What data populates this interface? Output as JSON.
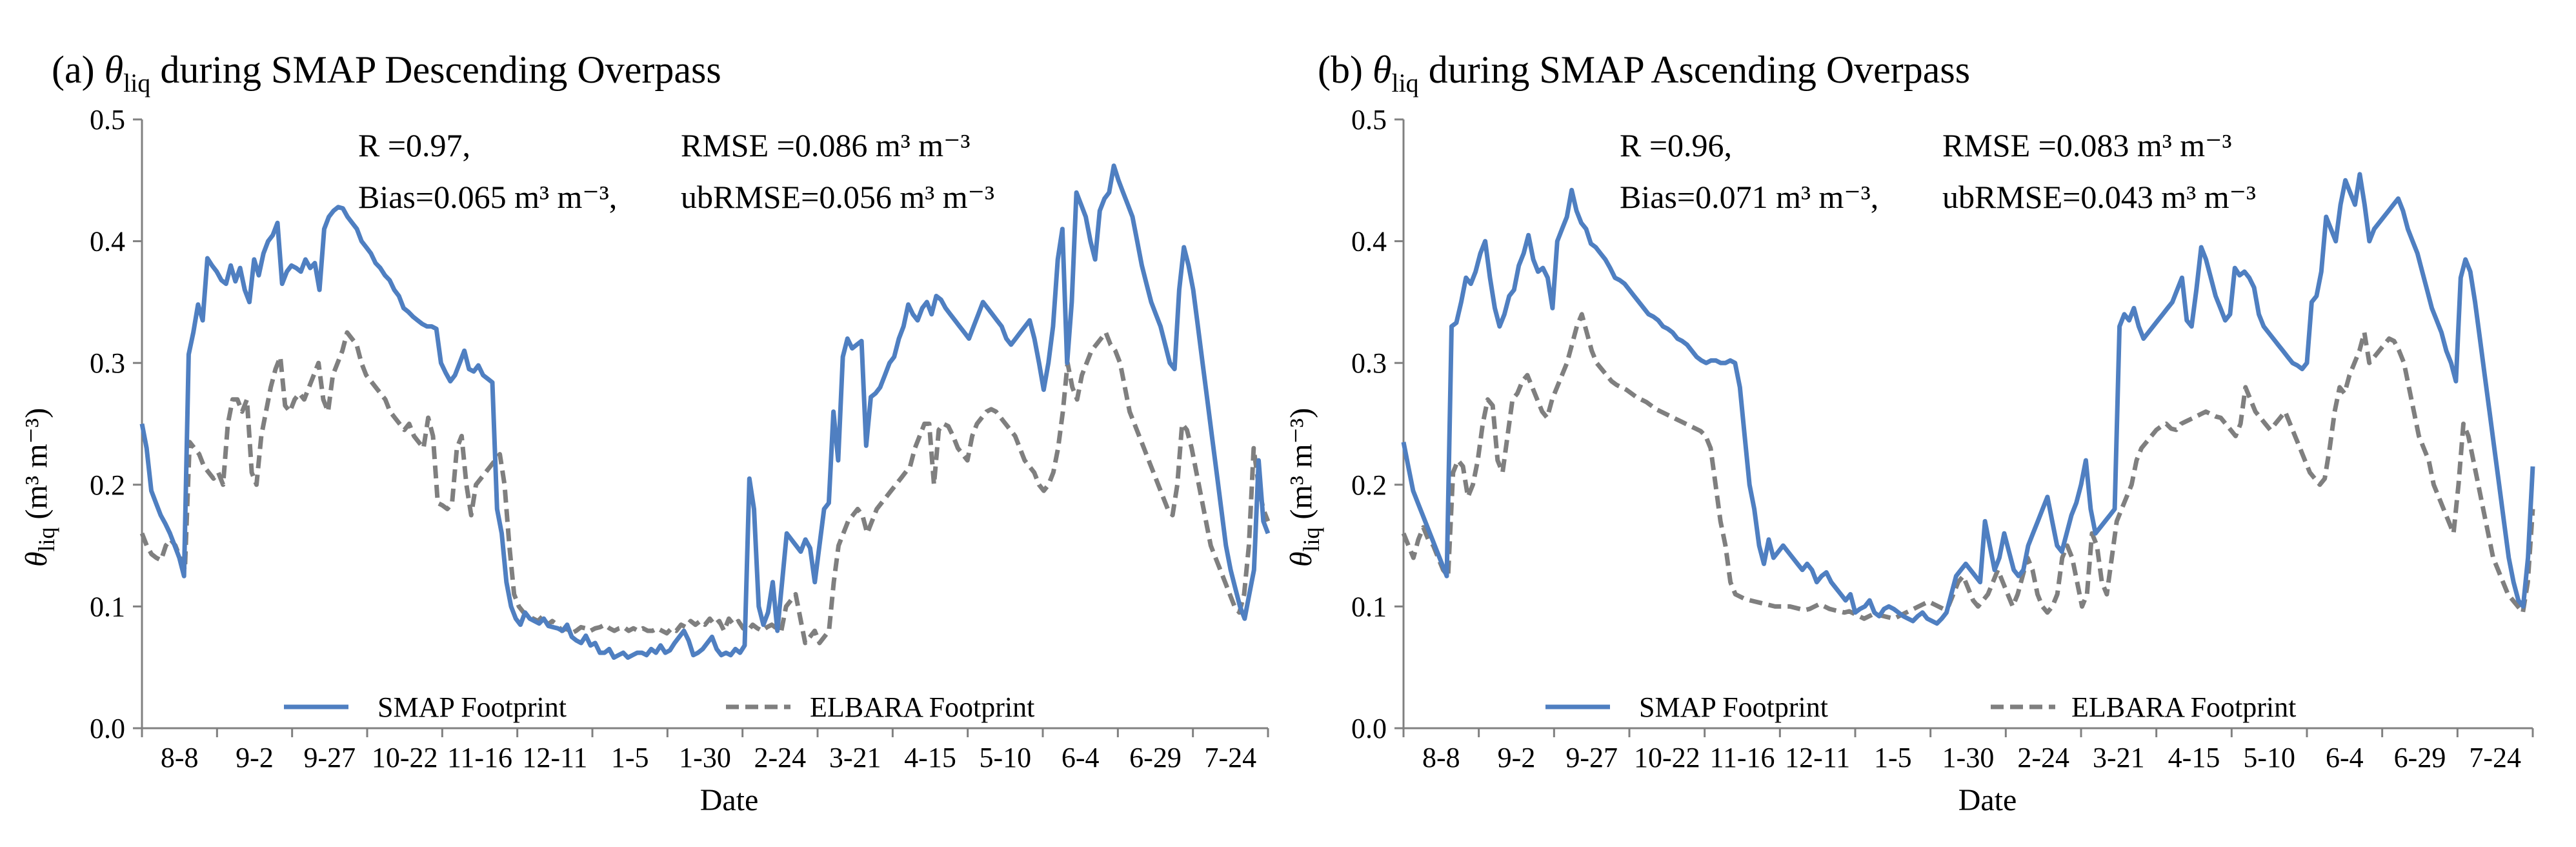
{
  "colors": {
    "smap": "#4F7FC1",
    "elbara": "#7F7F7F",
    "axis": "#808080"
  },
  "chart_data": [
    {
      "type": "line",
      "panel_label": "(a)",
      "title_symbol": "θ",
      "title_subscript": "liq",
      "title_text": " during SMAP Descending Overpass",
      "xlabel": "Date",
      "ylabel_symbol": "θ",
      "ylabel_subscript": "liq",
      "ylabel_unit": "(m³ m⁻³)",
      "ylim": [
        0,
        0.5
      ],
      "yticks": [
        "0.0",
        "0.1",
        "0.2",
        "0.3",
        "0.4",
        "0.5"
      ],
      "xticks": [
        "8-8",
        "9-2",
        "9-27",
        "10-22",
        "11-16",
        "12-11",
        "1-5",
        "1-30",
        "2-24",
        "3-21",
        "4-15",
        "5-10",
        "6-4",
        "6-29",
        "7-24"
      ],
      "stats": {
        "r": "R   =0.97,",
        "rmse": "RMSE   =0.086 m³ m⁻³",
        "bias": "Bias=0.065 m³ m⁻³,",
        "ubrmse": "ubRMSE=0.056 m³ m⁻³"
      },
      "legend": [
        "SMAP Footprint",
        "ELBARA Footprint"
      ],
      "series": [
        {
          "name": "SMAP Footprint",
          "values": [
            0.25,
            0.23,
            0.195,
            0.185,
            0.175,
            0.168,
            0.16,
            0.15,
            0.14,
            0.125,
            0.307,
            0.325,
            0.348,
            0.335,
            0.386,
            0.38,
            0.375,
            0.368,
            0.365,
            0.38,
            0.367,
            0.378,
            0.36,
            0.35,
            0.385,
            0.372,
            0.39,
            0.4,
            0.405,
            0.415,
            0.365,
            0.375,
            0.38,
            0.378,
            0.375,
            0.385,
            0.378,
            0.382,
            0.36,
            0.41,
            0.42,
            0.425,
            0.428,
            0.427,
            0.42,
            0.415,
            0.41,
            0.4,
            0.395,
            0.39,
            0.382,
            0.378,
            0.372,
            0.368,
            0.36,
            0.355,
            0.345,
            0.342,
            0.338,
            0.335,
            0.332,
            0.33,
            0.33,
            0.328,
            0.3,
            0.292,
            0.285,
            0.29,
            0.3,
            0.31,
            0.295,
            0.293,
            0.298,
            0.29,
            0.287,
            0.284,
            0.18,
            0.16,
            0.12,
            0.1,
            0.09,
            0.085,
            0.095,
            0.09,
            0.088,
            0.086,
            0.09,
            0.084,
            0.083,
            0.082,
            0.08,
            0.085,
            0.075,
            0.072,
            0.07,
            0.076,
            0.068,
            0.07,
            0.062,
            0.062,
            0.065,
            0.058,
            0.06,
            0.062,
            0.058,
            0.06,
            0.062,
            0.062,
            0.06,
            0.065,
            0.062,
            0.068,
            0.062,
            0.064,
            0.07,
            0.075,
            0.08,
            0.072,
            0.06,
            0.062,
            0.065,
            0.07,
            0.075,
            0.065,
            0.06,
            0.062,
            0.06,
            0.065,
            0.062,
            0.068,
            0.205,
            0.18,
            0.1,
            0.085,
            0.095,
            0.12,
            0.08,
            0.12,
            0.16,
            0.155,
            0.15,
            0.145,
            0.155,
            0.148,
            0.12,
            0.15,
            0.18,
            0.185,
            0.26,
            0.22,
            0.305,
            0.32,
            0.312,
            0.315,
            0.318,
            0.232,
            0.272,
            0.275,
            0.28,
            0.29,
            0.3,
            0.305,
            0.32,
            0.33,
            0.348,
            0.34,
            0.335,
            0.345,
            0.35,
            0.34,
            0.355,
            0.352,
            0.345,
            0.34,
            0.335,
            0.33,
            0.325,
            0.32,
            0.33,
            0.34,
            0.35,
            0.345,
            0.34,
            0.335,
            0.33,
            0.32,
            0.315,
            0.32,
            0.325,
            0.33,
            0.335,
            0.32,
            0.3,
            0.278,
            0.3,
            0.33,
            0.385,
            0.41,
            0.3,
            0.35,
            0.44,
            0.43,
            0.42,
            0.4,
            0.385,
            0.425,
            0.435,
            0.44,
            0.462,
            0.45,
            0.44,
            0.43,
            0.42,
            0.4,
            0.38,
            0.365,
            0.35,
            0.34,
            0.33,
            0.315,
            0.3,
            0.295,
            0.36,
            0.395,
            0.38,
            0.36,
            0.33,
            0.3,
            0.27,
            0.24,
            0.21,
            0.18,
            0.15,
            0.13,
            0.115,
            0.1,
            0.09,
            0.11,
            0.13,
            0.22,
            0.17,
            0.16
          ]
        },
        {
          "name": "ELBARA Footprint",
          "values": [
            0.16,
            0.15,
            0.143,
            0.14,
            0.138,
            0.15,
            0.155,
            0.15,
            0.14,
            0.13,
            0.235,
            0.23,
            0.225,
            0.215,
            0.21,
            0.205,
            0.21,
            0.2,
            0.25,
            0.27,
            0.27,
            0.26,
            0.27,
            0.21,
            0.2,
            0.24,
            0.26,
            0.28,
            0.295,
            0.305,
            0.265,
            0.26,
            0.27,
            0.275,
            0.27,
            0.28,
            0.29,
            0.3,
            0.27,
            0.26,
            0.29,
            0.3,
            0.31,
            0.325,
            0.32,
            0.315,
            0.3,
            0.29,
            0.285,
            0.28,
            0.275,
            0.27,
            0.26,
            0.255,
            0.25,
            0.245,
            0.25,
            0.24,
            0.235,
            0.23,
            0.255,
            0.24,
            0.185,
            0.183,
            0.18,
            0.185,
            0.23,
            0.24,
            0.2,
            0.175,
            0.2,
            0.205,
            0.21,
            0.215,
            0.22,
            0.225,
            0.2,
            0.15,
            0.11,
            0.1,
            0.095,
            0.092,
            0.09,
            0.088,
            0.092,
            0.085,
            0.088,
            0.085,
            0.08,
            0.082,
            0.078,
            0.08,
            0.083,
            0.082,
            0.08,
            0.082,
            0.083,
            0.085,
            0.082,
            0.08,
            0.082,
            0.083,
            0.08,
            0.082,
            0.08,
            0.082,
            0.08,
            0.08,
            0.082,
            0.08,
            0.078,
            0.082,
            0.08,
            0.085,
            0.083,
            0.088,
            0.085,
            0.088,
            0.085,
            0.09,
            0.085,
            0.088,
            0.08,
            0.09,
            0.085,
            0.088,
            0.082,
            0.08,
            0.085,
            0.082,
            0.08,
            0.083,
            0.085,
            0.082,
            0.08,
            0.1,
            0.105,
            0.11,
            0.09,
            0.07,
            0.075,
            0.08,
            0.07,
            0.075,
            0.08,
            0.12,
            0.15,
            0.16,
            0.17,
            0.175,
            0.18,
            0.175,
            0.16,
            0.17,
            0.18,
            0.185,
            0.19,
            0.195,
            0.2,
            0.205,
            0.21,
            0.215,
            0.23,
            0.24,
            0.25,
            0.25,
            0.2,
            0.245,
            0.25,
            0.248,
            0.24,
            0.23,
            0.225,
            0.22,
            0.24,
            0.25,
            0.255,
            0.26,
            0.262,
            0.26,
            0.255,
            0.25,
            0.245,
            0.24,
            0.23,
            0.22,
            0.215,
            0.21,
            0.2,
            0.195,
            0.2,
            0.21,
            0.23,
            0.26,
            0.3,
            0.28,
            0.27,
            0.29,
            0.3,
            0.31,
            0.315,
            0.32,
            0.325,
            0.315,
            0.31,
            0.3,
            0.28,
            0.26,
            0.25,
            0.24,
            0.23,
            0.22,
            0.21,
            0.2,
            0.19,
            0.18,
            0.175,
            0.2,
            0.25,
            0.245,
            0.23,
            0.21,
            0.19,
            0.17,
            0.15,
            0.14,
            0.13,
            0.12,
            0.11,
            0.1,
            0.095,
            0.11,
            0.15,
            0.23,
            0.2,
            0.18,
            0.17
          ]
        }
      ]
    },
    {
      "type": "line",
      "panel_label": "(b)",
      "title_symbol": "θ",
      "title_subscript": "liq",
      "title_text": " during SMAP Ascending Overpass",
      "xlabel": "Date",
      "ylabel_symbol": "θ",
      "ylabel_subscript": "liq",
      "ylabel_unit": "(m³ m⁻³)",
      "ylim": [
        0,
        0.5
      ],
      "yticks": [
        "0.0",
        "0.1",
        "0.2",
        "0.3",
        "0.4",
        "0.5"
      ],
      "xticks": [
        "8-8",
        "9-2",
        "9-27",
        "10-22",
        "11-16",
        "12-11",
        "1-5",
        "1-30",
        "2-24",
        "3-21",
        "4-15",
        "5-10",
        "6-4",
        "6-29",
        "7-24"
      ],
      "stats": {
        "r": "R   =0.96,",
        "rmse": "RMSE    =0.083 m³ m⁻³",
        "bias": "Bias=0.071 m³ m⁻³,",
        "ubrmse": "ubRMSE=0.043 m³ m⁻³"
      },
      "legend": [
        "SMAP Footprint",
        "ELBARA Footprint"
      ],
      "series": [
        {
          "name": "SMAP Footprint",
          "values": [
            0.235,
            0.215,
            0.195,
            0.185,
            0.175,
            0.165,
            0.155,
            0.145,
            0.135,
            0.125,
            0.33,
            0.333,
            0.35,
            0.37,
            0.365,
            0.375,
            0.39,
            0.4,
            0.37,
            0.345,
            0.33,
            0.34,
            0.355,
            0.36,
            0.38,
            0.39,
            0.405,
            0.385,
            0.375,
            0.378,
            0.37,
            0.345,
            0.4,
            0.41,
            0.42,
            0.442,
            0.425,
            0.415,
            0.41,
            0.398,
            0.395,
            0.39,
            0.385,
            0.378,
            0.37,
            0.368,
            0.365,
            0.36,
            0.355,
            0.35,
            0.345,
            0.34,
            0.338,
            0.335,
            0.33,
            0.328,
            0.325,
            0.32,
            0.318,
            0.315,
            0.31,
            0.305,
            0.302,
            0.3,
            0.302,
            0.302,
            0.3,
            0.3,
            0.302,
            0.3,
            0.28,
            0.24,
            0.2,
            0.18,
            0.15,
            0.135,
            0.155,
            0.14,
            0.145,
            0.15,
            0.145,
            0.14,
            0.135,
            0.13,
            0.135,
            0.13,
            0.12,
            0.125,
            0.128,
            0.12,
            0.115,
            0.11,
            0.105,
            0.11,
            0.095,
            0.098,
            0.1,
            0.105,
            0.095,
            0.092,
            0.098,
            0.1,
            0.098,
            0.095,
            0.092,
            0.09,
            0.088,
            0.092,
            0.095,
            0.09,
            0.088,
            0.086,
            0.09,
            0.095,
            0.11,
            0.125,
            0.13,
            0.135,
            0.13,
            0.125,
            0.12,
            0.17,
            0.15,
            0.13,
            0.14,
            0.16,
            0.145,
            0.13,
            0.125,
            0.13,
            0.15,
            0.16,
            0.17,
            0.18,
            0.19,
            0.17,
            0.15,
            0.145,
            0.16,
            0.175,
            0.185,
            0.2,
            0.22,
            0.18,
            0.16,
            0.165,
            0.17,
            0.175,
            0.18,
            0.33,
            0.34,
            0.335,
            0.345,
            0.33,
            0.32,
            0.325,
            0.33,
            0.335,
            0.34,
            0.345,
            0.35,
            0.36,
            0.37,
            0.335,
            0.33,
            0.36,
            0.395,
            0.385,
            0.37,
            0.355,
            0.345,
            0.335,
            0.34,
            0.378,
            0.372,
            0.375,
            0.37,
            0.362,
            0.34,
            0.33,
            0.325,
            0.32,
            0.315,
            0.31,
            0.305,
            0.3,
            0.298,
            0.295,
            0.3,
            0.35,
            0.355,
            0.375,
            0.42,
            0.41,
            0.4,
            0.43,
            0.45,
            0.44,
            0.43,
            0.455,
            0.43,
            0.4,
            0.41,
            0.415,
            0.42,
            0.425,
            0.43,
            0.435,
            0.425,
            0.41,
            0.4,
            0.39,
            0.375,
            0.36,
            0.345,
            0.335,
            0.325,
            0.31,
            0.3,
            0.285,
            0.37,
            0.385,
            0.375,
            0.35,
            0.32,
            0.29,
            0.26,
            0.23,
            0.2,
            0.17,
            0.14,
            0.12,
            0.105,
            0.1,
            0.14,
            0.215
          ]
        },
        {
          "name": "ELBARA Footprint",
          "values": [
            0.16,
            0.15,
            0.14,
            0.155,
            0.165,
            0.155,
            0.15,
            0.14,
            0.13,
            0.125,
            0.21,
            0.22,
            0.215,
            0.19,
            0.2,
            0.22,
            0.25,
            0.27,
            0.265,
            0.22,
            0.21,
            0.24,
            0.27,
            0.275,
            0.285,
            0.29,
            0.28,
            0.27,
            0.26,
            0.255,
            0.27,
            0.28,
            0.29,
            0.3,
            0.315,
            0.33,
            0.34,
            0.325,
            0.31,
            0.3,
            0.295,
            0.29,
            0.285,
            0.282,
            0.28,
            0.278,
            0.275,
            0.272,
            0.27,
            0.268,
            0.265,
            0.262,
            0.26,
            0.258,
            0.256,
            0.254,
            0.252,
            0.25,
            0.248,
            0.246,
            0.244,
            0.24,
            0.23,
            0.2,
            0.17,
            0.15,
            0.12,
            0.11,
            0.108,
            0.106,
            0.105,
            0.104,
            0.103,
            0.102,
            0.101,
            0.1,
            0.1,
            0.1,
            0.1,
            0.099,
            0.098,
            0.097,
            0.098,
            0.1,
            0.102,
            0.1,
            0.098,
            0.097,
            0.096,
            0.095,
            0.096,
            0.094,
            0.092,
            0.09,
            0.092,
            0.094,
            0.093,
            0.092,
            0.091,
            0.09,
            0.092,
            0.094,
            0.096,
            0.098,
            0.1,
            0.102,
            0.104,
            0.102,
            0.1,
            0.098,
            0.1,
            0.11,
            0.12,
            0.125,
            0.115,
            0.105,
            0.1,
            0.105,
            0.11,
            0.12,
            0.13,
            0.12,
            0.11,
            0.1,
            0.11,
            0.125,
            0.14,
            0.13,
            0.11,
            0.1,
            0.095,
            0.1,
            0.11,
            0.14,
            0.15,
            0.14,
            0.12,
            0.1,
            0.11,
            0.16,
            0.15,
            0.12,
            0.11,
            0.14,
            0.17,
            0.18,
            0.19,
            0.2,
            0.22,
            0.23,
            0.235,
            0.24,
            0.245,
            0.248,
            0.25,
            0.246,
            0.245,
            0.25,
            0.252,
            0.254,
            0.256,
            0.258,
            0.26,
            0.258,
            0.256,
            0.255,
            0.25,
            0.245,
            0.24,
            0.25,
            0.28,
            0.27,
            0.26,
            0.255,
            0.25,
            0.245,
            0.25,
            0.255,
            0.26,
            0.25,
            0.24,
            0.23,
            0.22,
            0.21,
            0.205,
            0.2,
            0.205,
            0.23,
            0.26,
            0.28,
            0.275,
            0.29,
            0.3,
            0.31,
            0.325,
            0.3,
            0.305,
            0.31,
            0.315,
            0.32,
            0.318,
            0.31,
            0.3,
            0.28,
            0.26,
            0.24,
            0.23,
            0.22,
            0.2,
            0.19,
            0.18,
            0.17,
            0.16,
            0.2,
            0.25,
            0.24,
            0.22,
            0.2,
            0.18,
            0.16,
            0.14,
            0.13,
            0.12,
            0.11,
            0.105,
            0.1,
            0.095,
            0.12,
            0.18
          ]
        }
      ]
    }
  ]
}
